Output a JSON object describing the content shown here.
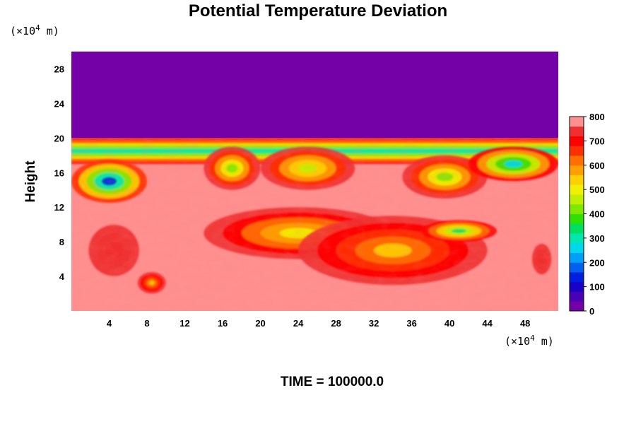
{
  "chart_data": {
    "type": "heatmap",
    "title": "Potential Temperature Deviation",
    "ylabel": "Height",
    "x_unit": {
      "prefix": "(×10",
      "exp": "4",
      "suffix": " m)"
    },
    "y_unit": {
      "prefix": "(×10",
      "exp": "4",
      "suffix": " m)"
    },
    "xlim": [
      0,
      51.5
    ],
    "ylim": [
      0,
      30
    ],
    "x_ticks": [
      4,
      8,
      12,
      16,
      20,
      24,
      28,
      32,
      36,
      40,
      44,
      48
    ],
    "y_ticks": [
      4,
      8,
      12,
      16,
      20,
      24,
      28
    ],
    "colorbar": {
      "min": 0,
      "max": 800,
      "tick_labels": [
        0,
        100,
        200,
        300,
        400,
        500,
        600,
        700,
        800
      ],
      "colors": [
        "#7400a8",
        "#4a00b4",
        "#1b00c8",
        "#0020e0",
        "#0060f0",
        "#00a0f8",
        "#00d8f0",
        "#00e8b0",
        "#00e060",
        "#30e000",
        "#80e800",
        "#c0f000",
        "#f0f000",
        "#ffd000",
        "#ffa000",
        "#ff7000",
        "#ff3000",
        "#ff0000",
        "#f03030",
        "#ff9090"
      ]
    },
    "field": {
      "background_value": 800,
      "upper_layer": {
        "value": 0,
        "y_from": 20,
        "y_to": 30
      },
      "features": [
        {
          "kind": "turbulent-layer",
          "x": [
            0,
            51.5
          ],
          "y": [
            17,
            20
          ],
          "value": 300
        },
        {
          "kind": "blob",
          "x": [
            0,
            8
          ],
          "y": [
            12.5,
            17.5
          ],
          "value": 150
        },
        {
          "kind": "blob",
          "x": [
            14,
            20
          ],
          "y": [
            14,
            19
          ],
          "value": 400
        },
        {
          "kind": "blob",
          "x": [
            20,
            30
          ],
          "y": [
            14,
            19
          ],
          "value": 450
        },
        {
          "kind": "blob",
          "x": [
            35,
            44
          ],
          "y": [
            13,
            18
          ],
          "value": 400
        },
        {
          "kind": "blob",
          "x": [
            42,
            51.5
          ],
          "y": [
            15,
            19
          ],
          "value": 250
        },
        {
          "kind": "blob",
          "x": [
            14,
            34
          ],
          "y": [
            6,
            12
          ],
          "value": 500
        },
        {
          "kind": "blob",
          "x": [
            24,
            44
          ],
          "y": [
            3,
            11
          ],
          "value": 550
        },
        {
          "kind": "blob",
          "x": [
            37,
            45
          ],
          "y": [
            8,
            10.5
          ],
          "value": 350
        },
        {
          "kind": "warm-zone",
          "x": [
            0,
            9
          ],
          "y": [
            2,
            12
          ],
          "value": 720
        },
        {
          "kind": "warm-zone",
          "x": [
            48,
            51.5
          ],
          "y": [
            3,
            9
          ],
          "value": 720
        },
        {
          "kind": "blob",
          "x": [
            7,
            10
          ],
          "y": [
            2,
            4.5
          ],
          "value": 550
        }
      ]
    }
  },
  "footer": {
    "time": "TIME = 100000.0"
  }
}
